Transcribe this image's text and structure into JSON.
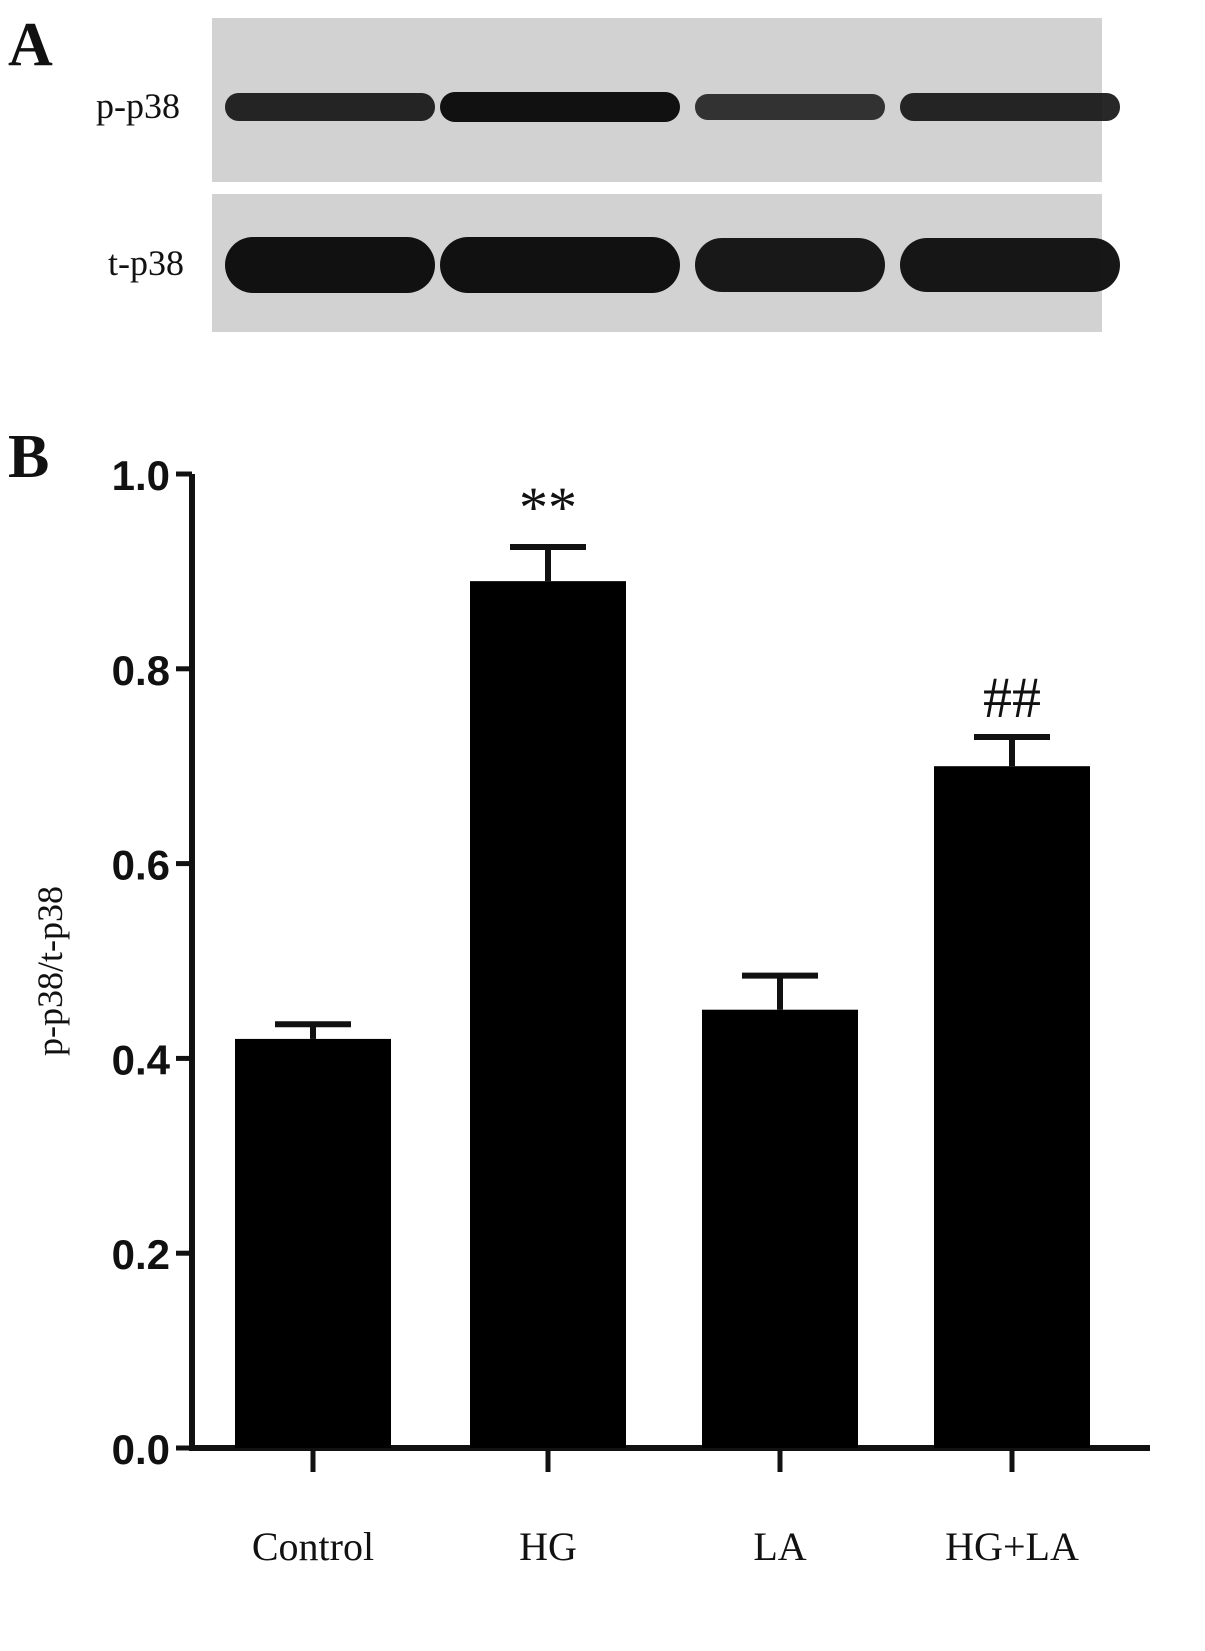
{
  "panel_a": {
    "letter": "A",
    "rows": [
      {
        "label": "p-p38",
        "band_intensity": [
          0.78,
          1.0,
          0.62,
          0.78
        ]
      },
      {
        "label": "t-p38",
        "band_intensity": [
          1.0,
          1.0,
          0.92,
          0.95
        ]
      }
    ]
  },
  "panel_b": {
    "letter": "B"
  },
  "chart_data": {
    "type": "bar",
    "categories": [
      "Control",
      "HG",
      "LA",
      "HG+LA"
    ],
    "values": [
      0.42,
      0.89,
      0.45,
      0.7
    ],
    "errors": [
      0.015,
      0.035,
      0.035,
      0.03
    ],
    "annotations": [
      "",
      "**",
      "",
      "##"
    ],
    "ylabel": "p-p38/t-p38",
    "xlabel": "",
    "ylim": [
      0.0,
      1.0
    ],
    "yticks": [
      "0.0",
      "0.2",
      "0.4",
      "0.6",
      "0.8",
      "1.0"
    ],
    "bar_color": "#000000",
    "grid": false
  }
}
